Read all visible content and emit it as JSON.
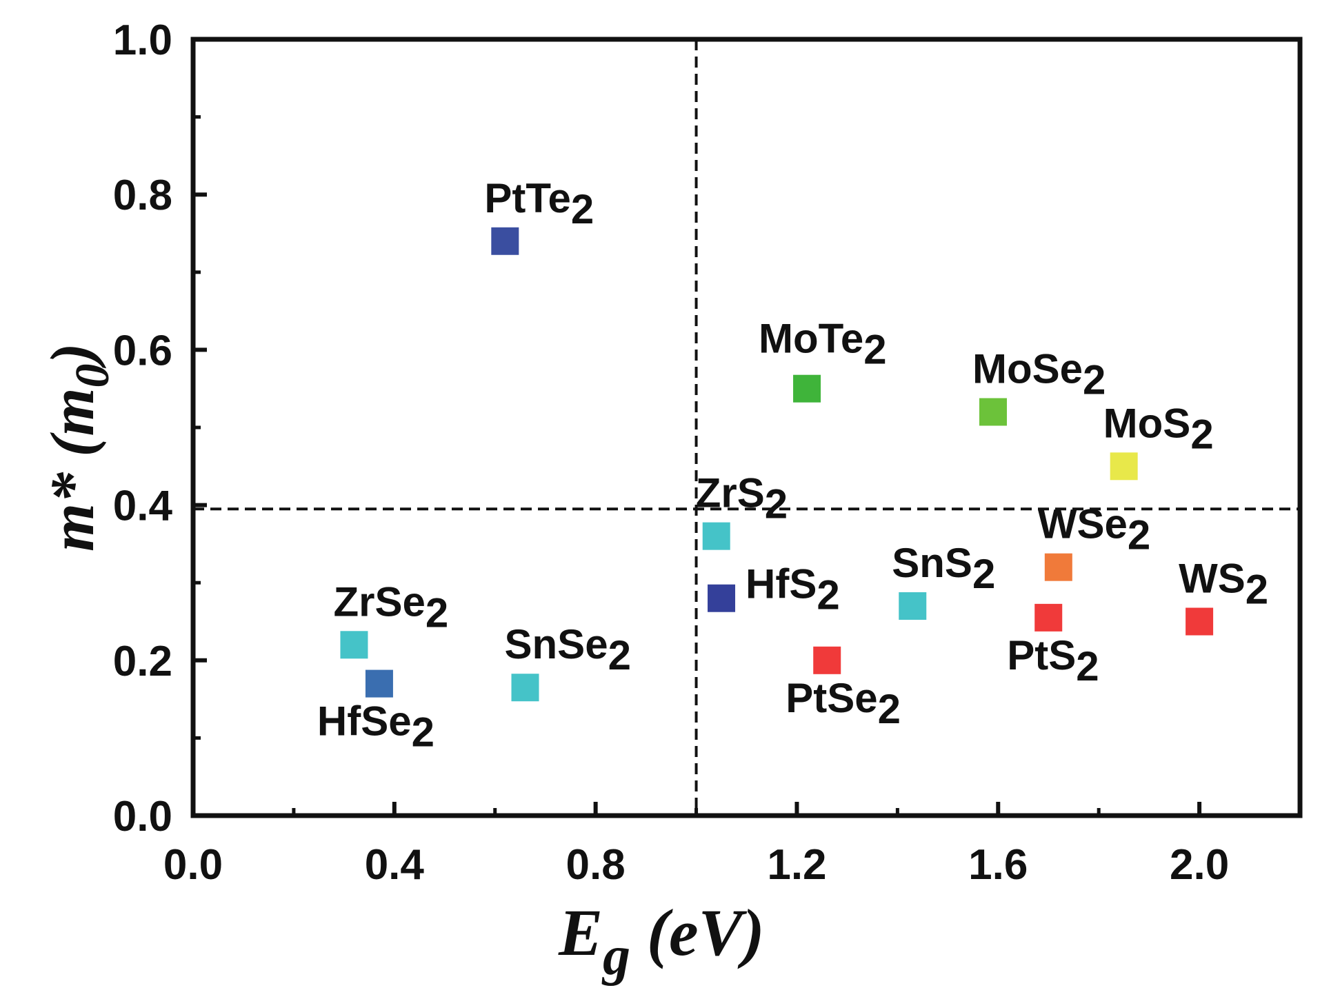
{
  "chart_data": {
    "type": "scatter",
    "title": "",
    "xlabel_main": "E",
    "xlabel_sub": "g",
    "xlabel_unit": " (eV)",
    "ylabel_main": "m* (m",
    "ylabel_sub": "0",
    "ylabel_close": ")",
    "xlim": [
      0.0,
      2.2
    ],
    "ylim": [
      0.0,
      1.0
    ],
    "xticks": [
      0.0,
      0.4,
      0.8,
      1.2,
      1.6,
      2.0
    ],
    "xtick_labels": [
      "0.0",
      "0.4",
      "0.8",
      "1.2",
      "1.6",
      "2.0"
    ],
    "yticks": [
      0.0,
      0.2,
      0.4,
      0.6,
      0.8,
      1.0
    ],
    "ytick_labels": [
      "0.0",
      "0.2",
      "0.4",
      "0.6",
      "0.8",
      "1.0"
    ],
    "reference_lines": {
      "vertical_x": 1.0,
      "horizontal_y": 0.395
    },
    "points": [
      {
        "base": "PtTe",
        "sub": "2",
        "x": 0.62,
        "y": 0.74,
        "color": "#3a4ea0",
        "label_pos": "above-right"
      },
      {
        "base": "MoTe",
        "sub": "2",
        "x": 1.22,
        "y": 0.55,
        "color": "#3fb43a",
        "label_pos": "above"
      },
      {
        "base": "MoSe",
        "sub": "2",
        "x": 1.59,
        "y": 0.52,
        "color": "#6cc23a",
        "label_pos": "above-right"
      },
      {
        "base": "MoS",
        "sub": "2",
        "x": 1.85,
        "y": 0.45,
        "color": "#e8e84a",
        "label_pos": "above-right"
      },
      {
        "base": "ZrS",
        "sub": "2",
        "x": 1.04,
        "y": 0.36,
        "color": "#45c3c8",
        "label_pos": "above-right"
      },
      {
        "base": "HfS",
        "sub": "2",
        "x": 1.05,
        "y": 0.28,
        "color": "#34409a",
        "label_pos": "right"
      },
      {
        "base": "SnS",
        "sub": "2",
        "x": 1.43,
        "y": 0.27,
        "color": "#45c3c8",
        "label_pos": "above-right"
      },
      {
        "base": "WSe",
        "sub": "2",
        "x": 1.72,
        "y": 0.32,
        "color": "#f07a3a",
        "label_pos": "above-right"
      },
      {
        "base": "PtS",
        "sub": "2",
        "x": 1.7,
        "y": 0.255,
        "color": "#f03a3a",
        "label_pos": "below-right"
      },
      {
        "base": "WS",
        "sub": "2",
        "x": 2.0,
        "y": 0.25,
        "color": "#f03a3a",
        "label_pos": "above-right"
      },
      {
        "base": "PtSe",
        "sub": "2",
        "x": 1.26,
        "y": 0.2,
        "color": "#f03a3a",
        "label_pos": "below-right"
      },
      {
        "base": "ZrSe",
        "sub": "2",
        "x": 0.32,
        "y": 0.22,
        "color": "#45c3c8",
        "label_pos": "above-right"
      },
      {
        "base": "HfSe",
        "sub": "2",
        "x": 0.37,
        "y": 0.17,
        "color": "#3a6eb0",
        "label_pos": "below"
      },
      {
        "base": "SnSe",
        "sub": "2",
        "x": 0.66,
        "y": 0.165,
        "color": "#45c3c8",
        "label_pos": "above-right"
      }
    ]
  }
}
